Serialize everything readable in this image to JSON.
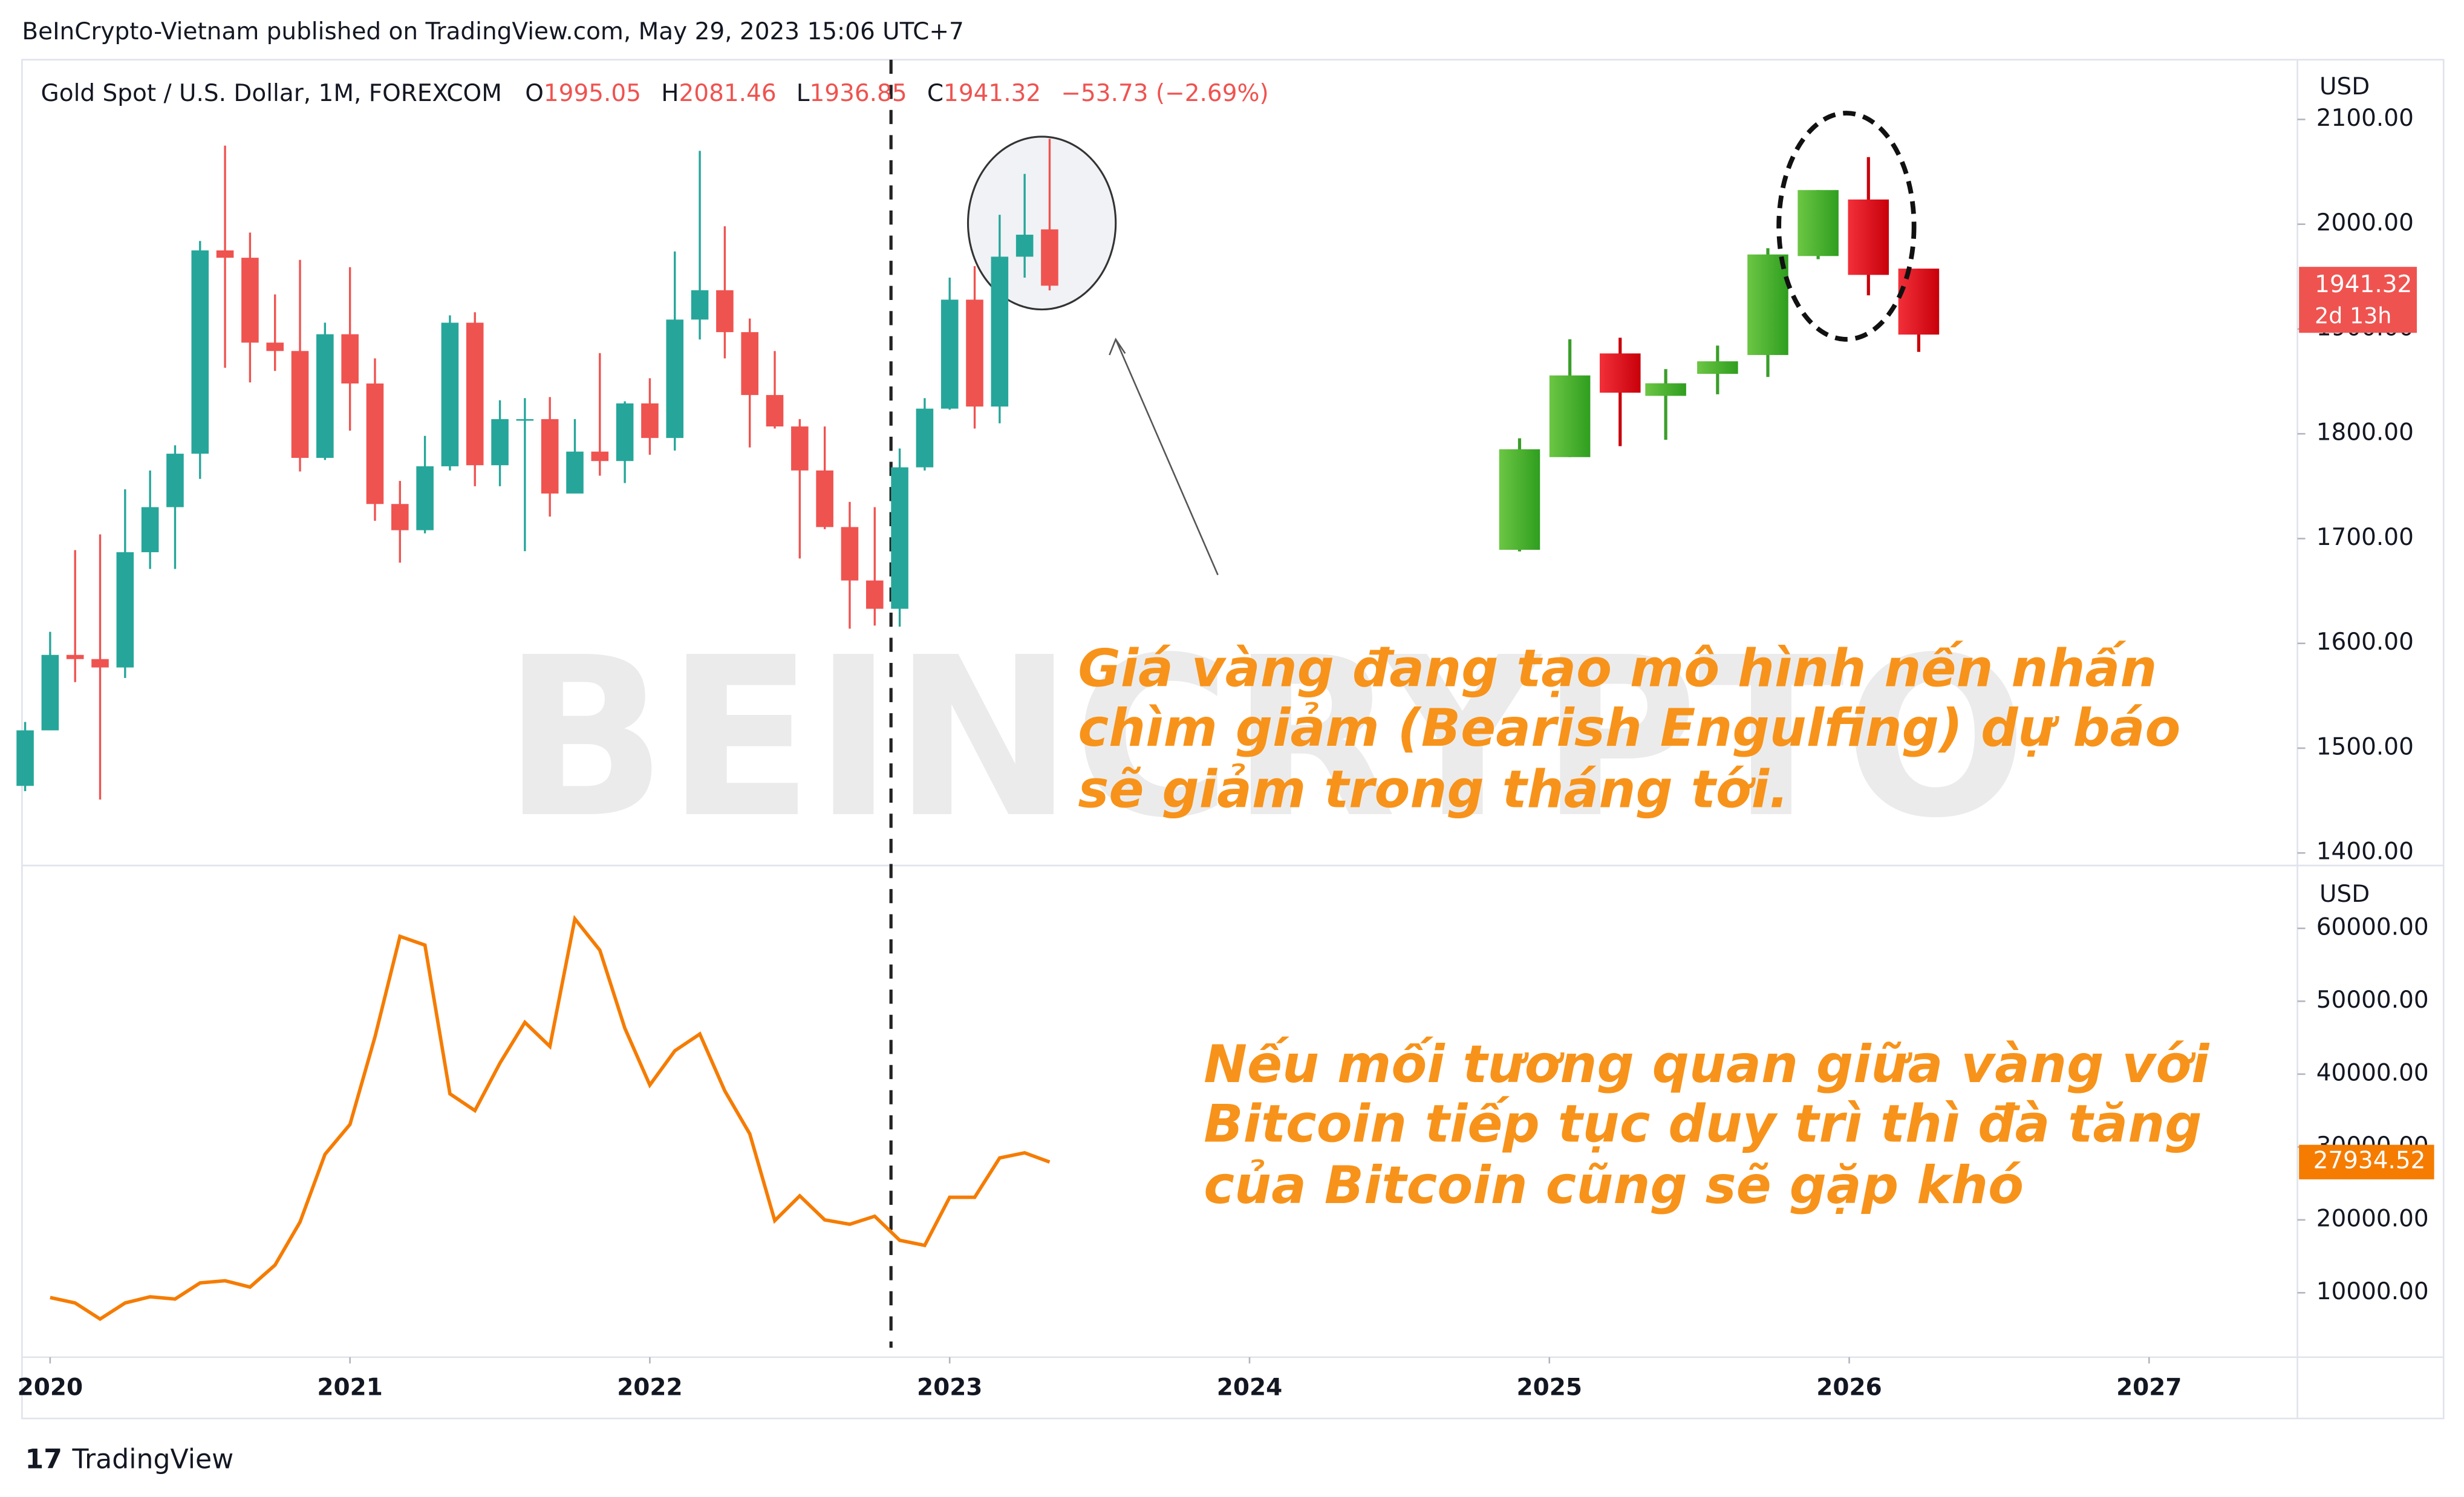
{
  "header": "BeInCrypto-Vietnam published on TradingView.com, May 29, 2023 15:06 UTC+7",
  "footer": "TradingView",
  "watermark": "BEINCRYPTO",
  "annotations": [
    [
      "Giá vàng đang tạo mô hình nến nhấn",
      "chìm giảm (Bearish Engulfing) dự báo",
      "sẽ giảm trong tháng tới."
    ],
    [
      "Nếu mối tương quan giữa vàng với",
      "Bitcoin tiếp tục duy trì thì đà tăng",
      "của Bitcoin cũng sẽ gặp khó"
    ]
  ],
  "chart_data": [
    {
      "type": "candlestick",
      "title": "Gold Spot / U.S. Dollar, 1M, FOREXCOM",
      "ohlc_labels": [
        "O",
        "H",
        "L",
        "C"
      ],
      "change": "−53.73 (−2.69%)",
      "countdown": "2d 13h",
      "currency": "USD",
      "up_color": "#26a69a",
      "down_color": "#ef5350",
      "x": [
        "2019-12",
        "2020-01",
        "2020-02",
        "2020-03",
        "2020-04",
        "2020-05",
        "2020-06",
        "2020-07",
        "2020-08",
        "2020-09",
        "2020-10",
        "2020-11",
        "2020-12",
        "2021-01",
        "2021-02",
        "2021-03",
        "2021-04",
        "2021-05",
        "2021-06",
        "2021-07",
        "2021-08",
        "2021-09",
        "2021-10",
        "2021-11",
        "2021-12",
        "2022-01",
        "2022-02",
        "2022-03",
        "2022-04",
        "2022-05",
        "2022-06",
        "2022-07",
        "2022-08",
        "2022-09",
        "2022-10",
        "2022-11",
        "2022-12",
        "2023-01",
        "2023-02",
        "2023-03",
        "2023-04",
        "2023-05"
      ],
      "open": [
        1464,
        1517,
        1589,
        1585,
        1577,
        1687,
        1730,
        1781,
        1975,
        1968,
        1887,
        1879,
        1777,
        1895,
        1848,
        1733,
        1708,
        1769,
        1906,
        1770,
        1814,
        1814,
        1743,
        1783,
        1774,
        1829,
        1796,
        1909,
        1937,
        1897,
        1837,
        1807,
        1765,
        1711,
        1660,
        1633,
        1768,
        1824,
        1928,
        1826,
        1969,
        1995.05
      ],
      "high": [
        1525,
        1611,
        1689,
        1704,
        1747,
        1765,
        1789,
        1984,
        2075,
        1992,
        1933,
        1966,
        1906,
        1959,
        1872,
        1755,
        1798,
        1913,
        1916,
        1832,
        1834,
        1835,
        1814,
        1877,
        1831,
        1853,
        1974,
        2070,
        1998,
        1910,
        1879,
        1814,
        1807,
        1735,
        1730,
        1786,
        1834,
        1949,
        1960,
        2009,
        2048,
        2081.46
      ],
      "low": [
        1459,
        1517,
        1563,
        1451,
        1567,
        1671,
        1671,
        1757,
        1863,
        1849,
        1860,
        1764,
        1775,
        1803,
        1717,
        1677,
        1705,
        1765,
        1750,
        1750,
        1688,
        1721,
        1746,
        1760,
        1753,
        1780,
        1784,
        1890,
        1872,
        1787,
        1805,
        1681,
        1709,
        1614,
        1617,
        1616,
        1765,
        1823,
        1805,
        1810,
        1949,
        1936.85
      ],
      "close": [
        1517,
        1589,
        1585,
        1577,
        1687,
        1730,
        1781,
        1975,
        1968,
        1887,
        1879,
        1777,
        1895,
        1848,
        1733,
        1708,
        1769,
        1906,
        1770,
        1814,
        1814,
        1743,
        1783,
        1774,
        1829,
        1796,
        1909,
        1937,
        1897,
        1837,
        1807,
        1765,
        1711,
        1660,
        1633,
        1768,
        1824,
        1928,
        1826,
        1969,
        1990,
        1941.32
      ],
      "xlim": [
        "2019-12",
        "2027-07"
      ],
      "ylim": [
        1388,
        2157
      ],
      "yticks": [
        {
          "value": 1400,
          "label": "1400.00"
        },
        {
          "value": 1500,
          "label": "1500.00"
        },
        {
          "value": 1600,
          "label": "1600.00"
        },
        {
          "value": 1700,
          "label": "1700.00"
        },
        {
          "value": 1800,
          "label": "1800.00"
        },
        {
          "value": 1900,
          "label": "1900.00"
        },
        {
          "value": 2000,
          "label": "2000.00"
        },
        {
          "value": 2100,
          "label": "2100.00"
        }
      ]
    },
    {
      "type": "line",
      "currency": "USD",
      "x": [
        "2019-12",
        "2020-01",
        "2020-02",
        "2020-03",
        "2020-04",
        "2020-05",
        "2020-06",
        "2020-07",
        "2020-08",
        "2020-09",
        "2020-10",
        "2020-11",
        "2020-12",
        "2021-01",
        "2021-02",
        "2021-03",
        "2021-04",
        "2021-05",
        "2021-06",
        "2021-07",
        "2021-08",
        "2021-09",
        "2021-10",
        "2021-11",
        "2021-12",
        "2022-01",
        "2022-02",
        "2022-03",
        "2022-04",
        "2022-05",
        "2022-06",
        "2022-07",
        "2022-08",
        "2022-09",
        "2022-10",
        "2022-11",
        "2022-12",
        "2023-01",
        "2023-02",
        "2023-03",
        "2023-04",
        "2023-05"
      ],
      "series": [
        {
          "color": "#f57c00",
          "values": [
            null,
            9350,
            8600,
            6400,
            8600,
            9450,
            9140,
            11350,
            11650,
            10780,
            13800,
            19700,
            29000,
            33100,
            45100,
            58900,
            57700,
            37300,
            35000,
            41500,
            47100,
            43800,
            61300,
            57000,
            46300,
            38500,
            43200,
            45500,
            37700,
            31800,
            19900,
            23300,
            20000,
            19400,
            20500,
            17200,
            16500,
            23100,
            23100,
            28500,
            29200,
            27934.52
          ]
        }
      ],
      "xlim": [
        "2019-12",
        "2027-07"
      ],
      "ylim": [
        1160,
        68620
      ],
      "yticks": [
        {
          "value": 10000,
          "label": "10000.00"
        },
        {
          "value": 20000,
          "label": "20000.00"
        },
        {
          "value": 30000,
          "label": "30000.00"
        },
        {
          "value": 40000,
          "label": "40000.00"
        },
        {
          "value": 50000,
          "label": "50000.00"
        },
        {
          "value": 60000,
          "label": "60000.00"
        }
      ],
      "xticks": [
        2020,
        2021,
        2022,
        2023,
        2024,
        2025,
        2026,
        2027
      ]
    }
  ]
}
